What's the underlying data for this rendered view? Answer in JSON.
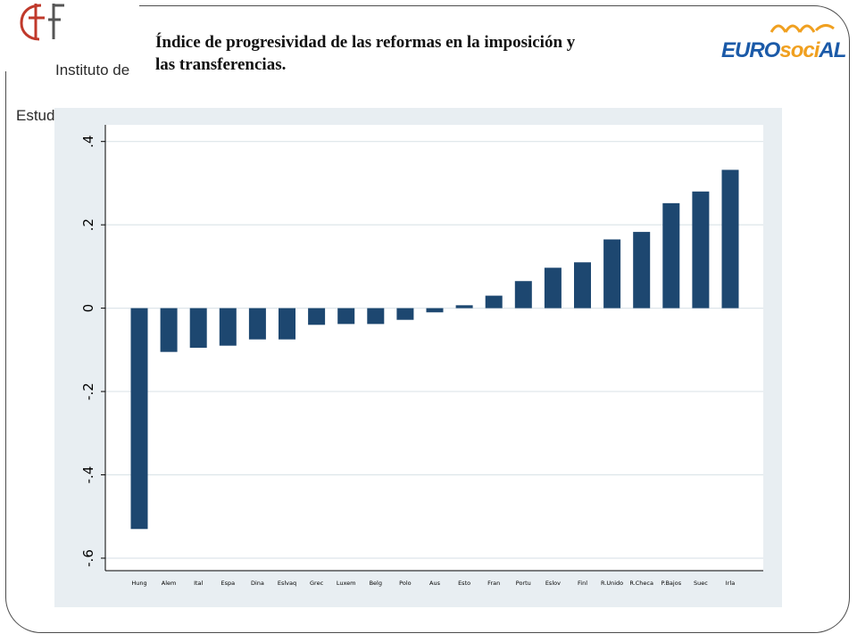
{
  "header": {
    "title_line1": "Índice de progresividad de las reformas en la imposición y",
    "title_line2": "las transferencias.",
    "left_logo_line1": "Instituto de",
    "left_logo_line2": "Estudios Fiscales",
    "right_logo_text": "EURO",
    "right_logo_text2": "soci",
    "right_logo_text3": "AL"
  },
  "colors": {
    "bar": "#1d4770",
    "panel_bg": "#e8eef2",
    "plot_bg": "#ffffff",
    "grid": "#dde5ea",
    "euro_blue": "#1b5aa8",
    "euro_orange": "#f0a020",
    "ief_red": "#c0392b"
  },
  "chart_data": {
    "type": "bar",
    "categories": [
      "Hung",
      "Alem",
      "Ital",
      "Espa",
      "Dina",
      "Eslvaq",
      "Grec",
      "Luxem",
      "Belg",
      "Polo",
      "Aus",
      "Esto",
      "Fran",
      "Portu",
      "Eslov",
      "Finl",
      "R.Unido",
      "R.Checa",
      "P.Bajos",
      "Suec",
      "Irla"
    ],
    "values": [
      -0.53,
      -0.105,
      -0.095,
      -0.09,
      -0.075,
      -0.075,
      -0.04,
      -0.038,
      -0.038,
      -0.028,
      -0.01,
      0.007,
      0.03,
      0.065,
      0.097,
      0.11,
      0.165,
      0.183,
      0.252,
      0.28,
      0.332
    ],
    "ylim": [
      -0.63,
      0.44
    ],
    "yticks": [
      -0.6,
      -0.4,
      -0.2,
      0,
      0.2,
      0.4
    ],
    "ytick_labels": [
      "-.6",
      "-.4",
      "-.2",
      "0",
      ".2",
      ".4"
    ],
    "grid": true,
    "title": "",
    "xlabel": "",
    "ylabel": ""
  }
}
